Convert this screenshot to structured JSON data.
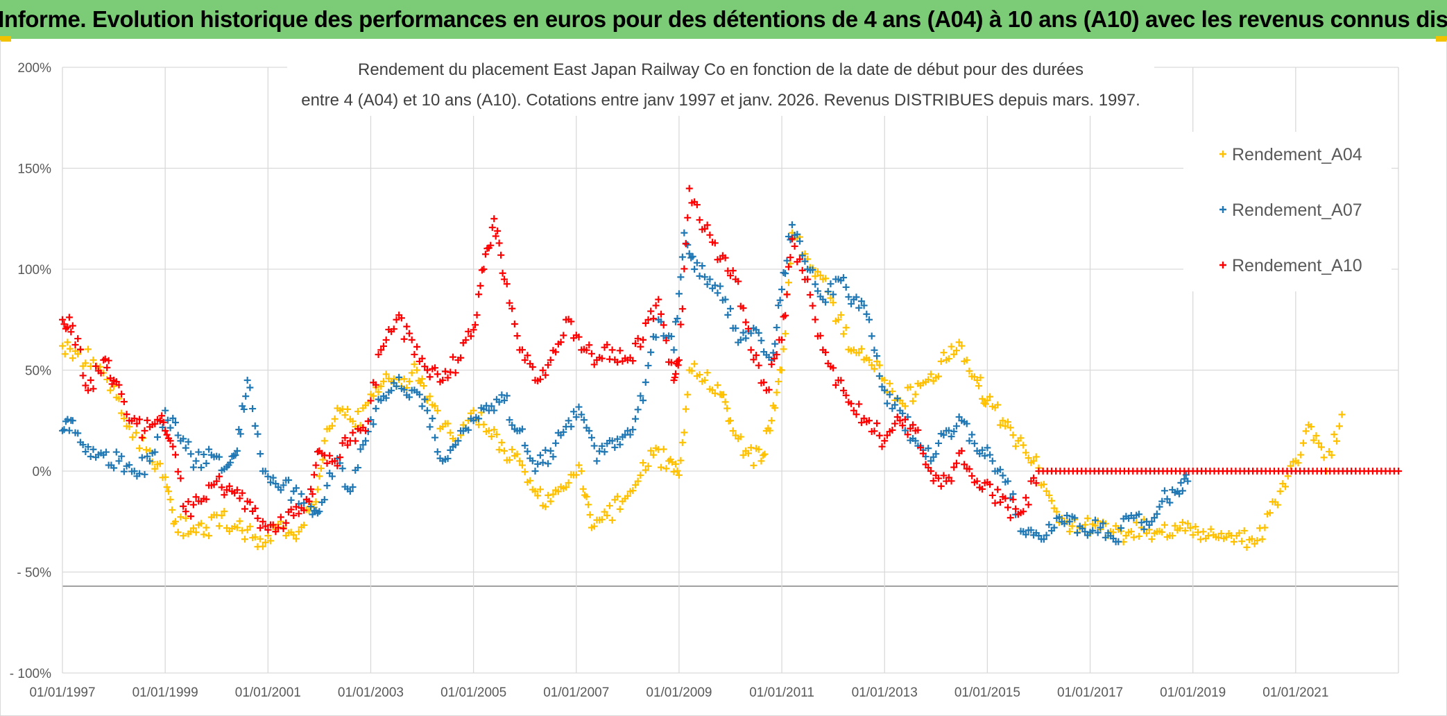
{
  "header": {
    "title": "ADAM Informe. Evolution historique des performances en euros pour des détentions de 4 ans (A04) à 10 ans (A10) avec les revenus connus distribués"
  },
  "colors": {
    "banner": "#7ccb77",
    "accent_corner": "#f2c200",
    "grid": "#d9d9d9",
    "axis_text": "#595959",
    "title_text": "#404040"
  },
  "chart_data": {
    "type": "scatter",
    "marker": "+",
    "title_lines": [
      "Rendement du placement East Japan Railway Co en fonction de la date de début pour des durées",
      "entre 4 (A04) et 10 ans (A10). Cotations entre janv 1997 et janv. 2026. Revenus DISTRIBUES depuis mars. 1997."
    ],
    "xlabel": "",
    "ylabel": "",
    "xlim": [
      1997.0,
      2023.0
    ],
    "ylim": [
      -100,
      200
    ],
    "x_tick_values": [
      1997,
      1999,
      2001,
      2003,
      2005,
      2007,
      2009,
      2011,
      2013,
      2015,
      2017,
      2019,
      2021
    ],
    "x_tick_labels": [
      "01/01/1997",
      "01/01/1999",
      "01/01/2001",
      "01/01/2003",
      "01/01/2005",
      "01/01/2007",
      "01/01/2009",
      "01/01/2011",
      "01/01/2013",
      "01/01/2015",
      "01/01/2017",
      "01/01/2019",
      "01/01/2021"
    ],
    "y_tick_values": [
      200,
      150,
      100,
      50,
      0,
      -50,
      -100
    ],
    "y_tick_labels": [
      "200%",
      "150%",
      "100%",
      "50%",
      "0%",
      "- 50%",
      "- 100%"
    ],
    "x_grid_extra": [
      2023
    ],
    "legend_position": "right",
    "series": [
      {
        "name": "Rendement_A04",
        "color": "#ffc000",
        "x": [
          1997.0,
          1997.3,
          1997.6,
          1998.0,
          1998.3,
          1998.7,
          1999.0,
          1999.2,
          1999.5,
          1999.8,
          2000.1,
          2000.4,
          2000.7,
          2001.0,
          2001.3,
          2001.6,
          2001.9,
          2002.1,
          2002.4,
          2002.7,
          2003.0,
          2003.3,
          2003.6,
          2003.9,
          2004.1,
          2004.4,
          2004.7,
          2005.0,
          2005.3,
          2005.6,
          2005.9,
          2006.2,
          2006.5,
          2006.8,
          2007.1,
          2007.3,
          2007.6,
          2007.9,
          2008.2,
          2008.5,
          2008.8,
          2009.0,
          2009.2,
          2009.5,
          2009.8,
          2010.0,
          2010.3,
          2010.6,
          2010.8,
          2011.0,
          2011.2,
          2011.5,
          2011.8,
          2012.1,
          2012.4,
          2012.7,
          2013.0,
          2013.3,
          2013.6,
          2013.9,
          2014.2,
          2014.5,
          2014.8,
          2015.0,
          2015.3,
          2015.6,
          2015.9,
          2016.2,
          2016.5,
          2016.8,
          2017.1,
          2017.4,
          2017.7,
          2018.0,
          2018.3,
          2018.6,
          2018.9,
          2019.2,
          2019.5,
          2019.8,
          2020.1,
          2020.4,
          2020.7,
          2021.0,
          2021.3,
          2021.6,
          2021.9
        ],
        "y": [
          62,
          58,
          55,
          42,
          22,
          10,
          -3,
          -25,
          -30,
          -28,
          -22,
          -28,
          -33,
          -32,
          -28,
          -30,
          -18,
          15,
          30,
          22,
          38,
          48,
          42,
          50,
          35,
          22,
          15,
          30,
          20,
          10,
          5,
          -10,
          -15,
          -8,
          0,
          -28,
          -22,
          -15,
          -5,
          8,
          5,
          -2,
          50,
          45,
          38,
          25,
          10,
          5,
          25,
          50,
          118,
          105,
          95,
          75,
          60,
          55,
          45,
          35,
          38,
          48,
          55,
          62,
          45,
          35,
          25,
          15,
          5,
          -12,
          -25,
          -28,
          -27,
          -30,
          -32,
          -28,
          -30,
          -32,
          -26,
          -30,
          -33,
          -35,
          -34,
          -28,
          -10,
          5,
          22,
          0,
          28
        ]
      },
      {
        "name": "Rendement_A07",
        "color": "#1f77b4",
        "x": [
          1997.0,
          1997.2,
          1997.5,
          1997.8,
          1998.1,
          1998.4,
          1998.7,
          1999.0,
          1999.3,
          1999.6,
          1999.9,
          2000.2,
          2000.4,
          2000.6,
          2000.9,
          2001.2,
          2001.5,
          2001.8,
          2002.0,
          2002.3,
          2002.6,
          2002.9,
          2003.2,
          2003.5,
          2003.8,
          2004.1,
          2004.4,
          2004.7,
          2005.0,
          2005.3,
          2005.6,
          2005.9,
          2006.2,
          2006.5,
          2006.8,
          2007.1,
          2007.4,
          2007.7,
          2008.0,
          2008.3,
          2008.6,
          2008.9,
          2009.1,
          2009.3,
          2009.6,
          2009.9,
          2010.2,
          2010.5,
          2010.8,
          2011.0,
          2011.2,
          2011.5,
          2011.8,
          2012.1,
          2012.4,
          2012.7,
          2013.0,
          2013.3,
          2013.6,
          2013.9,
          2014.2,
          2014.5,
          2014.8,
          2015.1,
          2015.4,
          2015.7,
          2016.0,
          2016.3,
          2016.6,
          2016.9,
          2017.2,
          2017.5,
          2017.8,
          2018.1,
          2018.4,
          2018.7,
          2018.9
        ],
        "y": [
          20,
          25,
          12,
          8,
          5,
          0,
          5,
          30,
          15,
          5,
          8,
          2,
          10,
          45,
          0,
          -8,
          -10,
          -15,
          -20,
          5,
          -10,
          15,
          35,
          42,
          40,
          30,
          5,
          15,
          25,
          30,
          35,
          20,
          0,
          10,
          22,
          28,
          5,
          15,
          20,
          35,
          75,
          60,
          118,
          100,
          95,
          85,
          65,
          70,
          55,
          90,
          122,
          100,
          85,
          95,
          85,
          75,
          40,
          30,
          15,
          5,
          20,
          25,
          10,
          5,
          -5,
          -30,
          -32,
          -28,
          -25,
          -30,
          -28,
          -35,
          -22,
          -25,
          -15,
          -10,
          -5
        ]
      },
      {
        "name": "Rendement_A10",
        "color": "#ff0000",
        "x": [
          1997.0,
          1997.2,
          1997.5,
          1997.8,
          1998.0,
          1998.3,
          1998.6,
          1998.9,
          1999.1,
          1999.4,
          1999.7,
          2000.0,
          2000.3,
          2000.6,
          2000.9,
          2001.2,
          2001.5,
          2001.8,
          2002.0,
          2002.3,
          2002.6,
          2002.9,
          2003.2,
          2003.5,
          2003.8,
          2004.1,
          2004.4,
          2004.7,
          2005.0,
          2005.2,
          2005.4,
          2005.6,
          2005.9,
          2006.2,
          2006.5,
          2006.8,
          2007.1,
          2007.4,
          2007.7,
          2008.0,
          2008.3,
          2008.6,
          2008.9,
          2009.0,
          2009.2,
          2009.5,
          2009.8,
          2010.1,
          2010.4,
          2010.7,
          2011.0,
          2011.2,
          2011.5,
          2011.8,
          2012.1,
          2012.4,
          2012.7,
          2013.0,
          2013.3,
          2013.6,
          2013.9,
          2014.2,
          2014.5,
          2014.8,
          2015.1,
          2015.4,
          2015.7,
          2016.0,
          2016.5,
          2017.0,
          2017.5,
          2018.0,
          2018.5,
          2019.0,
          2019.5,
          2020.0,
          2020.5,
          2021.0,
          2021.5,
          2022.0,
          2022.5,
          2023.0
        ],
        "y": [
          75,
          72,
          40,
          55,
          45,
          25,
          20,
          25,
          15,
          -20,
          -15,
          -5,
          -10,
          -15,
          -25,
          -28,
          -22,
          -15,
          10,
          5,
          15,
          20,
          60,
          75,
          65,
          50,
          45,
          55,
          70,
          100,
          125,
          95,
          60,
          45,
          55,
          75,
          60,
          55,
          60,
          55,
          65,
          85,
          45,
          55,
          140,
          120,
          105,
          95,
          60,
          40,
          65,
          115,
          95,
          60,
          45,
          30,
          25,
          15,
          25,
          20,
          0,
          -5,
          10,
          -5,
          -12,
          -18,
          -20,
          0,
          0,
          0,
          0,
          0,
          0,
          0,
          0,
          0,
          0,
          0,
          0,
          0,
          0,
          0
        ]
      }
    ]
  }
}
